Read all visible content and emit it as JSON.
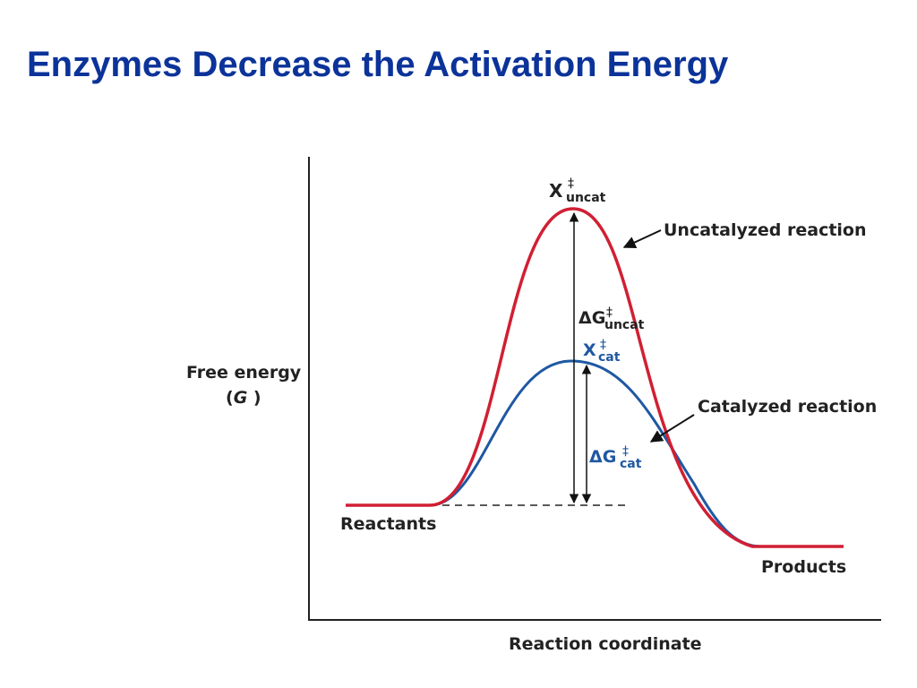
{
  "slide": {
    "title": "Enzymes Decrease the Activation Energy"
  },
  "diagram": {
    "y_axis_label_line1": "Free energy",
    "y_axis_label_line2_open": "(",
    "y_axis_label_line2_var": "G",
    "y_axis_label_line2_close": " )",
    "x_axis_label": "Reaction coordinate",
    "reactants_label": "Reactants",
    "products_label": "Products",
    "uncatalyzed_label": "Uncatalyzed reaction",
    "catalyzed_label": "Catalyzed reaction",
    "transition_uncat": {
      "main": "X",
      "sup": "‡",
      "sub": "uncat"
    },
    "transition_cat": {
      "main": "X",
      "sup": "‡",
      "sub": "cat"
    },
    "delta_g_uncat": {
      "main": "ΔG",
      "sup": "‡",
      "sub": "uncat"
    },
    "delta_g_cat": {
      "main": "ΔG",
      "sup": "‡",
      "sub": "cat"
    },
    "colors": {
      "title": "#0b3399",
      "uncatalyzed": "#d11f33",
      "catalyzed": "#1f58a2",
      "text": "#222222"
    }
  }
}
